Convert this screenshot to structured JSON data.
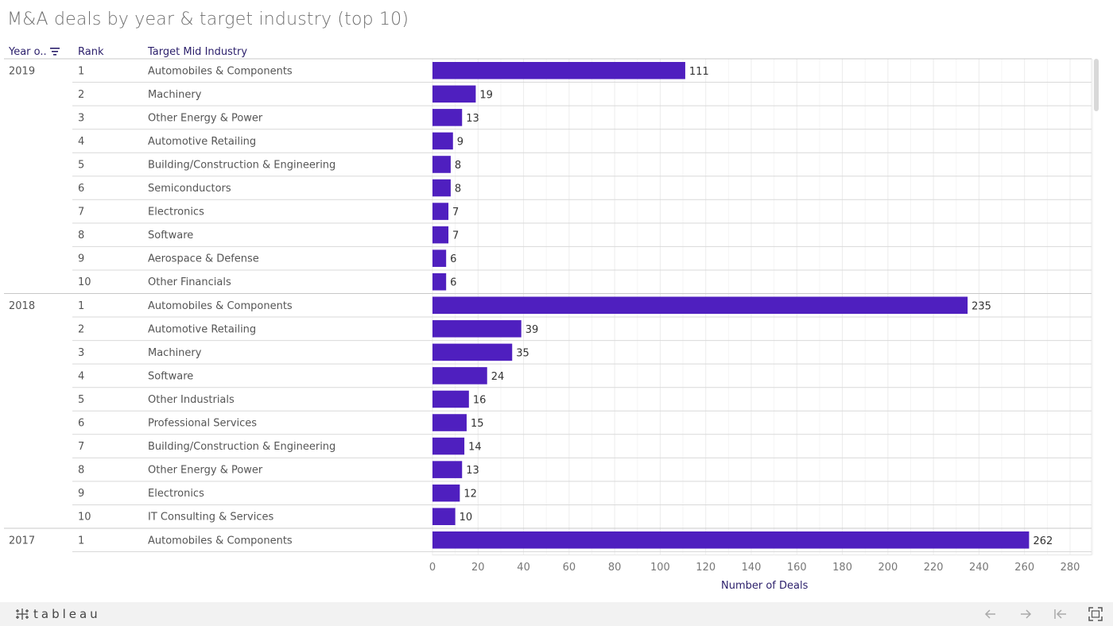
{
  "title": "M&A deals by year & target industry (top 10)",
  "columns": {
    "year": "Year o..",
    "rank": "Rank",
    "industry": "Target Mid Industry"
  },
  "icons": {
    "sort": "sort-descending-icon",
    "logo": "tableau-logo-icon",
    "undo": "arrow-left-icon",
    "redo": "arrow-right-icon",
    "revert": "revert-icon",
    "fullscreen": "fullscreen-icon"
  },
  "colors": {
    "bar": "#4f1fbf",
    "title": "#6f6f6f",
    "header": "#2b1f6b"
  },
  "branding": {
    "logo_text": "tableau"
  },
  "chart_data": {
    "type": "bar",
    "orientation": "horizontal",
    "xlabel": "Number of Deals",
    "xlim": [
      0,
      280
    ],
    "xticks": [
      0,
      20,
      40,
      60,
      80,
      100,
      120,
      140,
      160,
      180,
      200,
      220,
      240,
      260,
      280
    ],
    "grid": true,
    "groups": [
      {
        "year": "2019",
        "rows": [
          {
            "rank": "1",
            "industry": "Automobiles & Components",
            "value": 111
          },
          {
            "rank": "2",
            "industry": "Machinery",
            "value": 19
          },
          {
            "rank": "3",
            "industry": "Other Energy & Power",
            "value": 13
          },
          {
            "rank": "4",
            "industry": "Automotive Retailing",
            "value": 9
          },
          {
            "rank": "5",
            "industry": "Building/Construction & Engineering",
            "value": 8
          },
          {
            "rank": "6",
            "industry": "Semiconductors",
            "value": 8
          },
          {
            "rank": "7",
            "industry": "Electronics",
            "value": 7
          },
          {
            "rank": "8",
            "industry": "Software",
            "value": 7
          },
          {
            "rank": "9",
            "industry": "Aerospace & Defense",
            "value": 6
          },
          {
            "rank": "10",
            "industry": "Other Financials",
            "value": 6
          }
        ]
      },
      {
        "year": "2018",
        "rows": [
          {
            "rank": "1",
            "industry": "Automobiles & Components",
            "value": 235
          },
          {
            "rank": "2",
            "industry": "Automotive Retailing",
            "value": 39
          },
          {
            "rank": "3",
            "industry": "Machinery",
            "value": 35
          },
          {
            "rank": "4",
            "industry": "Software",
            "value": 24
          },
          {
            "rank": "5",
            "industry": "Other Industrials",
            "value": 16
          },
          {
            "rank": "6",
            "industry": "Professional Services",
            "value": 15
          },
          {
            "rank": "7",
            "industry": "Building/Construction & Engineering",
            "value": 14
          },
          {
            "rank": "8",
            "industry": "Other Energy & Power",
            "value": 13
          },
          {
            "rank": "9",
            "industry": "Electronics",
            "value": 12
          },
          {
            "rank": "10",
            "industry": "IT Consulting & Services",
            "value": 10
          }
        ]
      },
      {
        "year": "2017",
        "rows": [
          {
            "rank": "1",
            "industry": "Automobiles & Components",
            "value": 262
          }
        ]
      }
    ]
  }
}
